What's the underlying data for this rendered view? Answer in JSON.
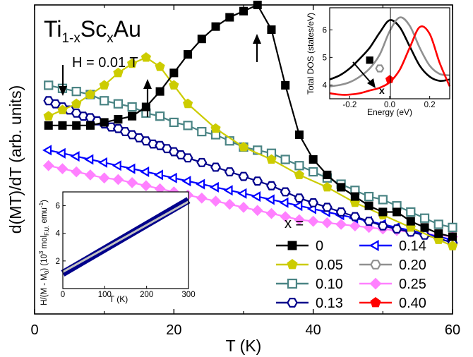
{
  "title": {
    "base": "Ti",
    "sub1": "1-x",
    "mid": "Sc",
    "sub2": "x",
    "end": "Au"
  },
  "field_annotation": "H = 0.01 T",
  "legend_title": "x =",
  "colors": {
    "x0": "#000000",
    "x005": "#cccc00",
    "x010": "#4a8484",
    "x013": "#00008b",
    "x014": "#0000ff",
    "x020": "#909090",
    "x025": "#ff80ff",
    "x040": "#ff0000"
  },
  "chart_data": [
    {
      "type": "line",
      "xlabel": "T (K)",
      "ylabel": "d(MT)/dT (arb. units)",
      "xlim": [
        0,
        60
      ],
      "ylim": [
        0,
        10
      ],
      "xticks": [
        "0",
        "20",
        "40",
        "60"
      ],
      "legend": "bottom-right",
      "grid": false,
      "series": [
        {
          "name": "0",
          "color": "#000000",
          "marker": "square-filled",
          "x": [
            2,
            4,
            6,
            8,
            10,
            12,
            14,
            16,
            18,
            20,
            22,
            24,
            26,
            28,
            30,
            32,
            34,
            36,
            38,
            40,
            42,
            44,
            46,
            48,
            50,
            52,
            54,
            56,
            58,
            60
          ],
          "y": [
            6.1,
            6.1,
            6.1,
            6.1,
            6.2,
            6.3,
            6.4,
            6.7,
            7.2,
            7.8,
            8.4,
            8.9,
            9.3,
            9.6,
            9.8,
            10.0,
            9.2,
            7.4,
            5.8,
            5.0,
            4.5,
            4.1,
            3.8,
            3.5,
            3.3,
            3.3,
            3.0,
            2.8,
            2.6,
            2.5
          ]
        },
        {
          "name": "0.05",
          "color": "#cccc00",
          "marker": "pentagon-filled",
          "x": [
            2,
            4,
            6,
            8,
            10,
            12,
            14,
            16,
            18,
            20,
            22,
            26,
            30,
            34,
            38,
            42,
            46,
            50,
            54,
            58,
            60
          ],
          "y": [
            6.4,
            6.6,
            6.8,
            7.1,
            7.4,
            7.8,
            8.1,
            8.3,
            8.0,
            7.4,
            6.8,
            6.0,
            5.4,
            5.0,
            4.5,
            4.1,
            3.6,
            3.2,
            2.8,
            2.4,
            2.2
          ]
        },
        {
          "name": "0.10",
          "color": "#4a8484",
          "marker": "square-open",
          "x": [
            2,
            4,
            6,
            8,
            10,
            12,
            14,
            16,
            18,
            20,
            22,
            24,
            26,
            28,
            30,
            32,
            34,
            36,
            38,
            40,
            42,
            44,
            46,
            48,
            50,
            52,
            54,
            56,
            58,
            60
          ],
          "y": [
            7.4,
            7.3,
            7.2,
            7.1,
            6.9,
            6.8,
            6.7,
            6.5,
            6.4,
            6.2,
            6.1,
            5.9,
            5.8,
            5.6,
            5.4,
            5.3,
            5.2,
            5.0,
            4.8,
            4.6,
            4.4,
            4.2,
            4.0,
            3.8,
            3.7,
            3.5,
            3.3,
            3.1,
            2.9,
            2.8
          ]
        },
        {
          "name": "0.13",
          "color": "#00008b",
          "marker": "hexagon-open",
          "x": [
            2,
            3,
            4,
            5,
            6,
            7,
            8,
            9,
            10,
            11,
            12,
            13,
            14,
            15,
            16,
            17,
            18,
            19,
            20,
            21,
            22,
            24,
            26,
            28,
            30,
            32,
            34,
            36,
            38,
            40,
            42,
            44,
            46,
            48,
            50,
            52,
            54,
            56,
            58,
            60
          ],
          "y": [
            6.9,
            6.8,
            6.7,
            6.6,
            6.5,
            6.4,
            6.35,
            6.25,
            6.15,
            6.05,
            6.0,
            5.9,
            5.8,
            5.7,
            5.6,
            5.5,
            5.45,
            5.35,
            5.25,
            5.15,
            5.05,
            4.9,
            4.75,
            4.6,
            4.45,
            4.3,
            4.15,
            3.95,
            3.75,
            3.6,
            3.45,
            3.3,
            3.15,
            3.0,
            2.85,
            2.75,
            2.65,
            2.55,
            2.45,
            2.3
          ]
        },
        {
          "name": "0.14",
          "color": "#0000ff",
          "marker": "triangle-left-open",
          "x": [
            2,
            4,
            6,
            8,
            10,
            12,
            14,
            16,
            18,
            20,
            22,
            24,
            26,
            28,
            30,
            32,
            34,
            36,
            38,
            40,
            42,
            44,
            46,
            48,
            50,
            52,
            54,
            56,
            58,
            60
          ],
          "y": [
            5.3,
            5.2,
            5.1,
            5.0,
            4.9,
            4.8,
            4.7,
            4.6,
            4.5,
            4.4,
            4.3,
            4.2,
            4.1,
            4.0,
            3.9,
            3.8,
            3.7,
            3.6,
            3.5,
            3.4,
            3.3,
            3.2,
            3.1,
            3.0,
            2.9,
            2.8,
            2.7,
            2.6,
            2.5,
            2.4
          ]
        },
        {
          "name": "0.20",
          "color": "#909090",
          "marker": "hexagon-open",
          "x": [],
          "y": []
        },
        {
          "name": "0.25",
          "color": "#ff80ff",
          "marker": "diamond-filled",
          "x": [
            2,
            4,
            6,
            8,
            10,
            12,
            14,
            16,
            18,
            20,
            22,
            24,
            26,
            28,
            30,
            32,
            34,
            36,
            38,
            40,
            42,
            44,
            46,
            48,
            50,
            52,
            54,
            56,
            58,
            60
          ],
          "y": [
            4.8,
            4.7,
            4.6,
            4.5,
            4.4,
            4.35,
            4.25,
            4.15,
            4.05,
            3.95,
            3.85,
            3.75,
            3.65,
            3.55,
            3.45,
            3.35,
            3.25,
            3.15,
            3.05,
            3.0,
            2.95,
            2.9,
            2.85,
            2.8,
            2.75,
            2.7,
            2.65,
            2.6,
            2.55,
            2.5
          ]
        },
        {
          "name": "0.40",
          "color": "#ff0000",
          "marker": "pentagon-filled",
          "x": [],
          "y": []
        }
      ]
    },
    {
      "type": "line",
      "xlabel": "Energy (eV)",
      "ylabel": "Total DOS (states/eV)",
      "xlim": [
        -0.3,
        0.3
      ],
      "ylim": [
        3.5,
        6.8
      ],
      "xticks": [
        "-0.2",
        "0.0",
        "0.2"
      ],
      "yticks": [
        "4",
        "5",
        "6"
      ],
      "annotation": "x",
      "series": [
        {
          "color": "#000000",
          "x": [
            -0.3,
            -0.25,
            -0.2,
            -0.15,
            -0.1,
            -0.05,
            0.0,
            0.05,
            0.1,
            0.15,
            0.2,
            0.25,
            0.3
          ],
          "y": [
            4.2,
            4.35,
            4.6,
            4.95,
            5.35,
            5.9,
            6.35,
            6.1,
            5.4,
            4.7,
            4.3,
            4.15,
            4.2
          ],
          "marker": {
            "x": -0.1,
            "y": 4.9,
            "shape": "square-filled"
          }
        },
        {
          "color": "#909090",
          "x": [
            -0.3,
            -0.25,
            -0.2,
            -0.15,
            -0.1,
            -0.05,
            0.0,
            0.05,
            0.1,
            0.15,
            0.2,
            0.25,
            0.3
          ],
          "y": [
            3.95,
            4.0,
            4.1,
            4.3,
            4.6,
            5.1,
            5.95,
            6.45,
            6.15,
            5.35,
            4.7,
            4.4,
            4.35
          ],
          "marker": {
            "x": -0.05,
            "y": 4.6,
            "shape": "hexagon-open"
          }
        },
        {
          "color": "#ff0000",
          "x": [
            -0.3,
            -0.25,
            -0.2,
            -0.15,
            -0.1,
            -0.05,
            0.0,
            0.05,
            0.1,
            0.15,
            0.2,
            0.25,
            0.3
          ],
          "y": [
            3.7,
            3.65,
            3.65,
            3.7,
            3.8,
            3.9,
            4.1,
            4.55,
            5.35,
            6.1,
            5.85,
            4.8,
            3.95
          ],
          "marker": {
            "x": 0.0,
            "y": 4.2,
            "shape": "pentagon-filled"
          }
        }
      ]
    },
    {
      "type": "line",
      "xlabel": "T (K)",
      "ylabel": "H/(M - M0) (10^3 molF.U. emu^-1)",
      "ylabel_parts": [
        "H/(M - M",
        "0",
        ") (10",
        "3",
        " mol",
        "F.U.",
        " emu",
        "-1",
        ")"
      ],
      "xlim": [
        0,
        300
      ],
      "ylim": [
        0,
        7
      ],
      "xticks": [
        "0",
        "100",
        "200",
        "300"
      ],
      "yticks": [
        "2",
        "4",
        "6"
      ],
      "series": [
        {
          "color": "#00008b",
          "x": [
            0,
            300
          ],
          "y": [
            1.1,
            6.4
          ]
        },
        {
          "color": "#c0c0c0",
          "x": [
            0,
            300
          ],
          "y": [
            1.2,
            6.3
          ]
        }
      ]
    }
  ]
}
